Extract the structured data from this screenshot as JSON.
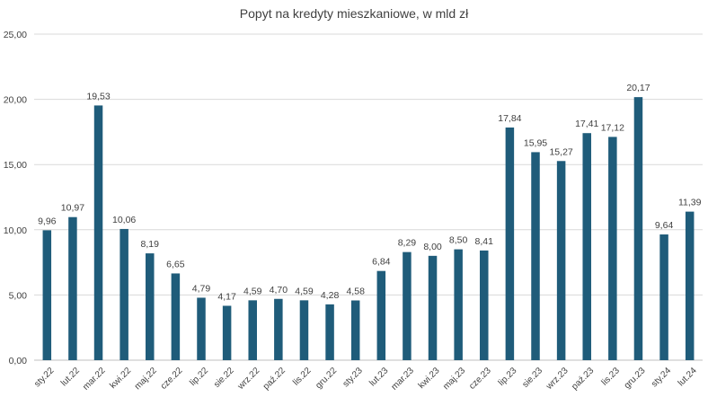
{
  "chart_data": {
    "type": "bar",
    "title": "Popyt na kredyty mieszkaniowe, w mld zł",
    "xlabel": "",
    "ylabel": "",
    "ylim": [
      0,
      25
    ],
    "yticks": [
      "0,00",
      "5,00",
      "10,00",
      "15,00",
      "20,00",
      "25,00"
    ],
    "grid": true,
    "legend": "none",
    "bar_color": "#1f5c7a",
    "categories": [
      "sty.22",
      "lut.22",
      "mar.22",
      "kwi.22",
      "maj.22",
      "cze.22",
      "lip.22",
      "sie.22",
      "wrz.22",
      "paź.22",
      "lis.22",
      "gru.22",
      "sty.23",
      "lut.23",
      "mar.23",
      "kwi.23",
      "maj.23",
      "cze.23",
      "lip.23",
      "sie.23",
      "wrz.23",
      "paź.23",
      "lis.23",
      "gru.23",
      "sty.24",
      "lut.24"
    ],
    "values": [
      9.96,
      10.97,
      19.53,
      10.06,
      8.19,
      6.65,
      4.79,
      4.17,
      4.59,
      4.7,
      4.59,
      4.28,
      4.58,
      6.84,
      8.29,
      8.0,
      8.5,
      8.41,
      17.84,
      15.95,
      15.27,
      17.41,
      17.12,
      20.17,
      9.64,
      11.39
    ],
    "labels": [
      "9,96",
      "10,97",
      "19,53",
      "10,06",
      "8,19",
      "6,65",
      "4,79",
      "4,17",
      "4,59",
      "4,70",
      "4,59",
      "4,28",
      "4,58",
      "6,84",
      "8,29",
      "8,00",
      "8,50",
      "8,41",
      "17,84",
      "15,95",
      "15,27",
      "17,41",
      "17,12",
      "20,17",
      "9,64",
      "11,39"
    ]
  }
}
